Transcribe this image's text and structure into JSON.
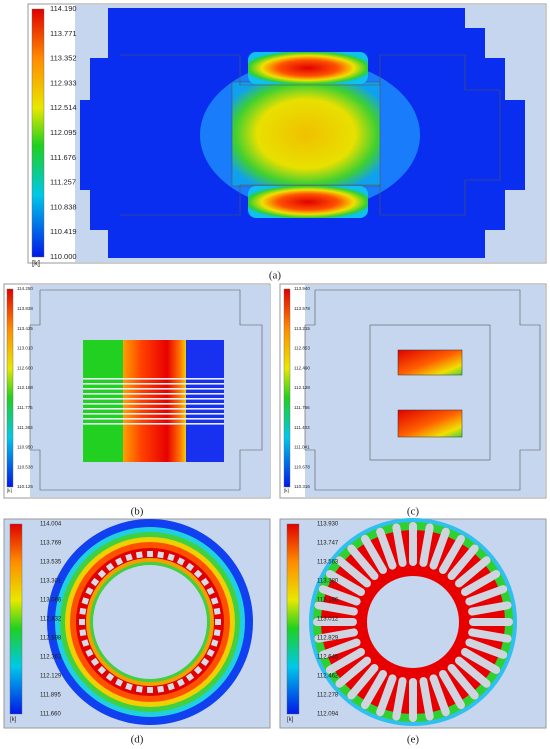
{
  "panels": [
    {
      "label": "(a)",
      "unit": "[k]",
      "scale": [
        "114.190",
        "113.771",
        "113.352",
        "112.933",
        "112.514",
        "112.095",
        "111.676",
        "111.257",
        "110.838",
        "110.419",
        "110.000"
      ]
    },
    {
      "label": "(b)",
      "unit": "[k]",
      "scale": [
        "114.250",
        "113.838",
        "113.425",
        "113.013",
        "112.600",
        "112.188",
        "111.775",
        "111.363",
        "110.950",
        "110.538",
        "110.125"
      ]
    },
    {
      "label": "(c)",
      "unit": "[k]",
      "scale": [
        "113.940",
        "113.578",
        "113.215",
        "112.853",
        "112.490",
        "112.128",
        "111.766",
        "111.403",
        "111.041",
        "110.678",
        "110.316"
      ]
    },
    {
      "label": "(d)",
      "unit": "[k]",
      "scale": [
        "114.004",
        "113.769",
        "113.535",
        "113.301",
        "113.066",
        "112.832",
        "112.598",
        "112.363",
        "112.129",
        "111.895",
        "111.660"
      ]
    },
    {
      "label": "(e)",
      "unit": "[k]",
      "scale": [
        "113.930",
        "113.747",
        "113.563",
        "113.380",
        "113.196",
        "113.012",
        "112.829",
        "112.645",
        "112.462",
        "112.278",
        "112.094"
      ]
    }
  ]
}
